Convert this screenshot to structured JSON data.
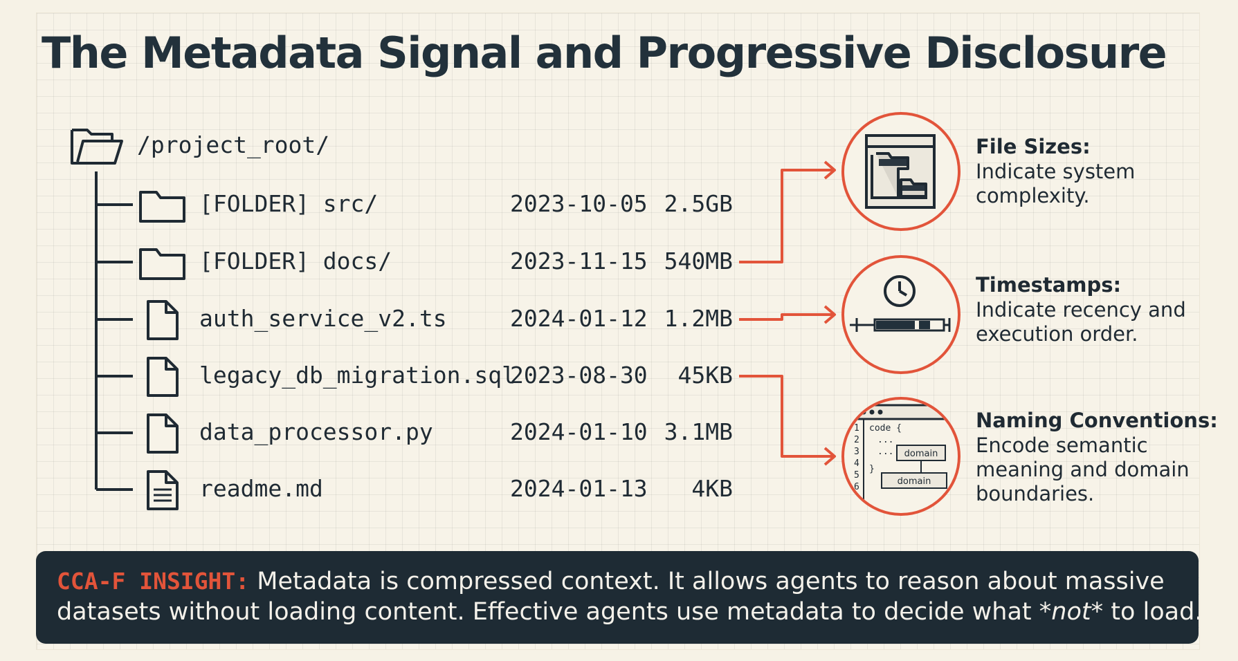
{
  "title": "The Metadata Signal and Progressive Disclosure",
  "tree": {
    "root": "/project_root/",
    "rows": [
      {
        "name": "[FOLDER] src/",
        "date": "2023-10-05",
        "size": "2.5GB",
        "icon": "folder-icon"
      },
      {
        "name": "[FOLDER] docs/",
        "date": "2023-11-15",
        "size": "540MB",
        "icon": "folder-icon"
      },
      {
        "name": "auth_service_v2.ts",
        "date": "2024-01-12",
        "size": "1.2MB",
        "icon": "file-icon"
      },
      {
        "name": "legacy_db_migration.sql",
        "date": "2023-08-30",
        "size": "45KB",
        "icon": "file-icon"
      },
      {
        "name": "data_processor.py",
        "date": "2024-01-10",
        "size": "3.1MB",
        "icon": "file-icon"
      },
      {
        "name": "readme.md",
        "date": "2024-01-13",
        "size": "4KB",
        "icon": "text-file-icon"
      }
    ]
  },
  "signals": [
    {
      "title": "File Sizes:",
      "desc": [
        "Indicate system",
        "complexity."
      ],
      "icon": "folder-tree-window-icon"
    },
    {
      "title": "Timestamps:",
      "desc": [
        "Indicate recency and",
        "execution order."
      ],
      "icon": "clock-timeline-icon"
    },
    {
      "title": "Naming Conventions:",
      "desc": [
        "Encode semantic",
        "meaning and domain",
        "boundaries."
      ],
      "icon": "code-editor-icon"
    }
  ],
  "code_icon": {
    "line_numbers": [
      "1",
      "2",
      "3",
      "4",
      "5",
      "6"
    ],
    "code_open": "code {",
    "dots1": "...",
    "dots2": "...",
    "close": "}",
    "tag1": "domain",
    "tag2": "domain"
  },
  "insight": {
    "label": "CCA-F INSIGHT:",
    "line1_text": " Metadata is compressed context. It allows agents to reason about massive",
    "line2_before": "datasets without loading content. Effective agents use metadata to decide what ",
    "line2_em": "*not*",
    "line2_after": " to load."
  },
  "colors": {
    "accent": "#e2543a",
    "ink": "#1f2a33",
    "panel": "#1e2b34",
    "background": "#f6f2e6"
  }
}
